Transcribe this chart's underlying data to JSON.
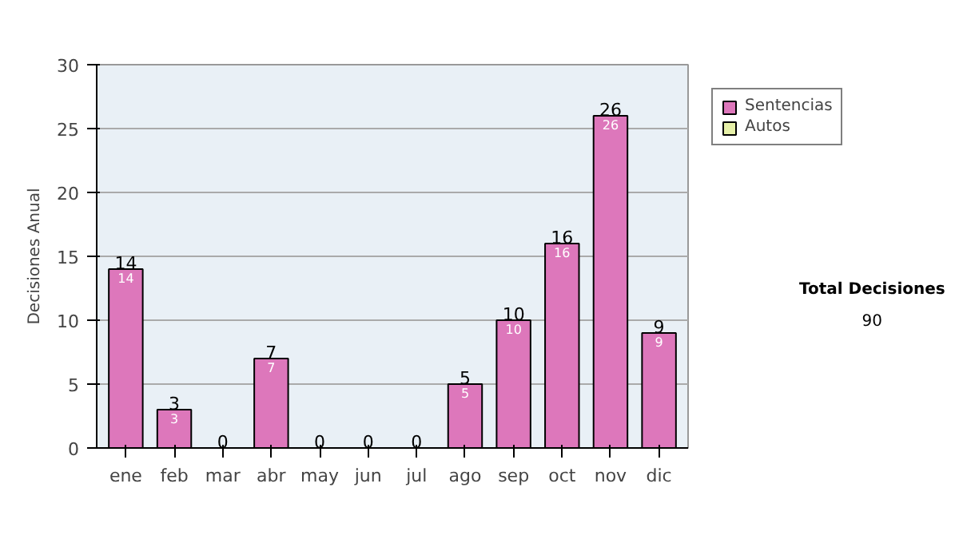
{
  "chart_data": {
    "type": "bar",
    "ylabel": "Decisiones Anual",
    "categories": [
      "ene",
      "feb",
      "mar",
      "abr",
      "may",
      "jun",
      "jul",
      "ago",
      "sep",
      "oct",
      "nov",
      "dic"
    ],
    "stacked": true,
    "series": [
      {
        "name": "Sentencias",
        "color": "#dd77bb",
        "values": [
          14,
          3,
          0,
          7,
          0,
          0,
          0,
          5,
          10,
          16,
          26,
          9
        ],
        "value_labels": [
          "14",
          "3",
          null,
          "7",
          null,
          null,
          null,
          "5",
          "10",
          "16",
          "26",
          "9"
        ]
      },
      {
        "name": "Autos",
        "color": "#e6f0a8",
        "values": [
          null,
          null,
          null,
          null,
          null,
          null,
          null,
          null,
          null,
          null,
          null,
          null
        ]
      }
    ],
    "totals": [
      "14",
      "3",
      "0",
      "7",
      "0",
      "0",
      "0",
      "5",
      "10",
      "16",
      "26",
      "9"
    ],
    "ylim": [
      0,
      30
    ],
    "yticks": [
      0,
      5,
      10,
      15,
      20,
      25,
      30
    ],
    "grid": "y",
    "legend": "right",
    "annotations": [
      "Total Decisiones",
      "90"
    ]
  }
}
